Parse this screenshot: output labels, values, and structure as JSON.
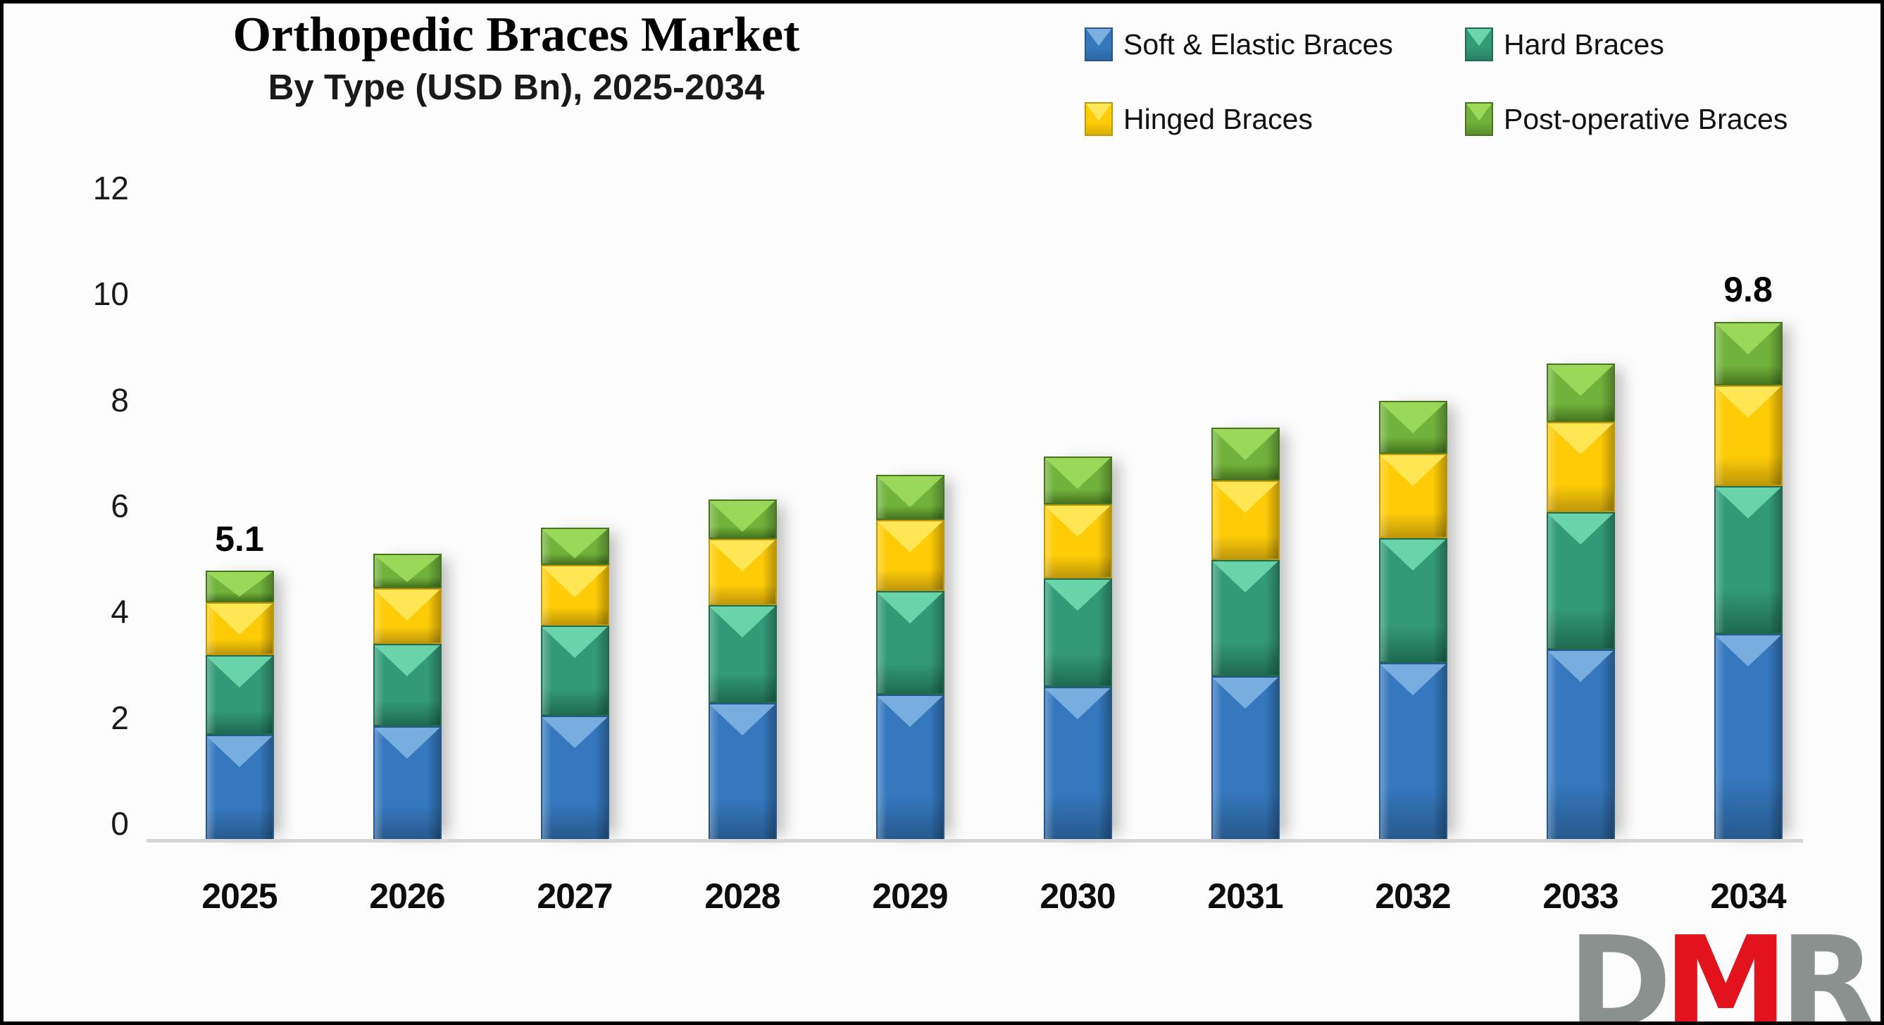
{
  "header": {
    "title": "Orthopedic Braces Market",
    "subtitle": "By Type (USD Bn), 2025-2034"
  },
  "legend": {
    "items": [
      {
        "label": "Soft & Elastic Braces",
        "colors": {
          "base": "#3578BE",
          "light": "#7FB3E2",
          "dark": "#27598E"
        }
      },
      {
        "label": "Hard Braces",
        "colors": {
          "base": "#339A78",
          "light": "#6FD9AE",
          "dark": "#1F6B51"
        }
      },
      {
        "label": "Hinged Braces",
        "colors": {
          "base": "#FFCC07",
          "light": "#FFE95E",
          "dark": "#C0990A"
        }
      },
      {
        "label": "Post-operative Braces",
        "colors": {
          "base": "#71B23C",
          "light": "#9EDC5C",
          "dark": "#47761F"
        }
      }
    ]
  },
  "chart_data": {
    "type": "bar",
    "stacked": true,
    "title": "Orthopedic Braces Market",
    "subtitle": "By Type (USD Bn), 2025-2034",
    "categories": [
      "2025",
      "2026",
      "2027",
      "2028",
      "2029",
      "2030",
      "2031",
      "2032",
      "2033",
      "2034"
    ],
    "series": [
      {
        "name": "Soft & Elastic Braces",
        "color": "#3578BE",
        "values": [
          2.0,
          2.15,
          2.35,
          2.6,
          2.75,
          2.9,
          3.1,
          3.35,
          3.6,
          3.9
        ]
      },
      {
        "name": "Hard Braces",
        "color": "#339A78",
        "values": [
          1.5,
          1.55,
          1.7,
          1.85,
          1.95,
          2.05,
          2.2,
          2.35,
          2.6,
          2.8
        ]
      },
      {
        "name": "Hinged Braces",
        "color": "#FFCC07",
        "values": [
          1.0,
          1.05,
          1.15,
          1.25,
          1.35,
          1.4,
          1.5,
          1.6,
          1.7,
          1.9
        ]
      },
      {
        "name": "Post-operative Braces",
        "color": "#71B23C",
        "values": [
          0.6,
          0.65,
          0.7,
          0.75,
          0.85,
          0.9,
          1.0,
          1.0,
          1.1,
          1.2
        ]
      }
    ],
    "totals": [
      5.1,
      5.4,
      5.9,
      6.45,
      6.9,
      7.25,
      7.8,
      8.3,
      9.0,
      9.8
    ],
    "bar_labels": [
      "5.1",
      "",
      "",
      "",
      "",
      "",
      "",
      "",
      "",
      "9.8"
    ],
    "xlabel": "",
    "ylabel": "",
    "y_ticks": [
      0,
      2,
      4,
      6,
      8,
      10,
      12
    ],
    "ylim": [
      0,
      12
    ],
    "grid": false,
    "legend_position": "top-right"
  },
  "watermark": {
    "letters": [
      {
        "char": "D",
        "color": "#8A918E"
      },
      {
        "char": "M",
        "color": "#E2131C"
      },
      {
        "char": "R",
        "color": "#8A918E"
      }
    ]
  }
}
